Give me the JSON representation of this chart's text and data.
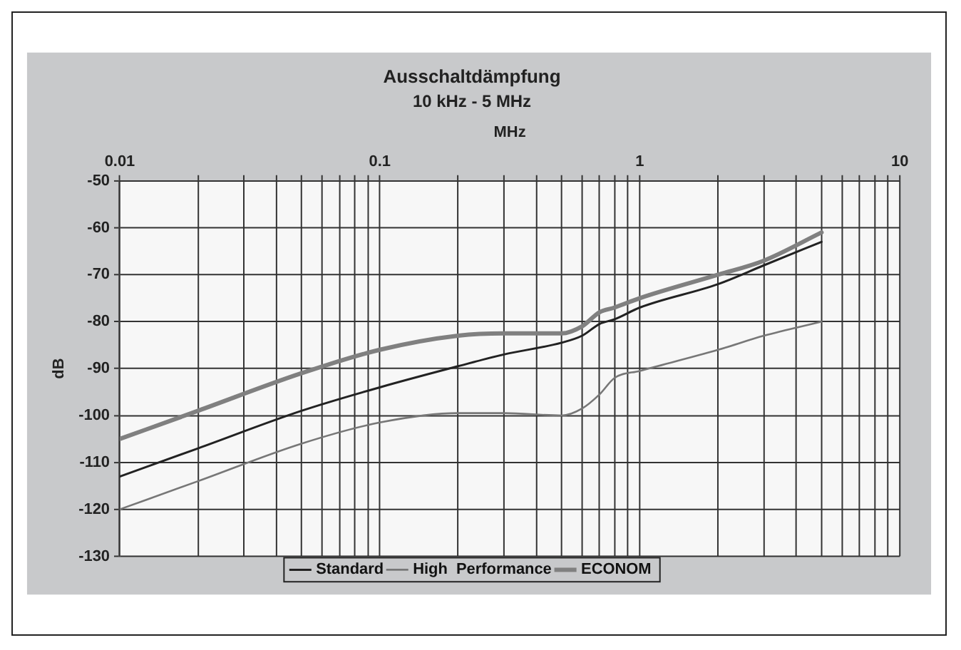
{
  "chart_data": {
    "type": "line",
    "title": "Ausschaltdämpfung",
    "subtitle": "10 kHz - 5 MHz",
    "xlabel": "MHz",
    "ylabel": "dB",
    "log": "x",
    "grid": true,
    "legend": "bottom",
    "marker": "none",
    "line_style": "solid",
    "x": [
      0.01,
      0.02,
      0.05,
      0.1,
      0.2,
      0.3,
      0.5,
      0.6,
      0.7,
      0.8,
      1,
      2,
      3,
      5
    ],
    "xlim": [
      0.01,
      10
    ],
    "xticks": [
      0.01,
      {
        "value": 0.02,
        "label": null
      },
      {
        "value": 0.03,
        "label": null
      },
      {
        "value": 0.04,
        "label": null
      },
      {
        "value": 0.05,
        "label": null
      },
      {
        "value": 0.06,
        "label": null
      },
      {
        "value": 0.07,
        "label": null
      },
      {
        "value": 0.08,
        "label": null
      },
      {
        "value": 0.09,
        "label": null
      },
      0.1,
      {
        "value": 0.2,
        "label": null
      },
      {
        "value": 0.3,
        "label": null
      },
      {
        "value": 0.4,
        "label": null
      },
      {
        "value": 0.5,
        "label": null
      },
      {
        "value": 0.6,
        "label": null
      },
      {
        "value": 0.7,
        "label": null
      },
      {
        "value": 0.8,
        "label": null
      },
      {
        "value": 0.9,
        "label": null
      },
      1,
      {
        "value": 2,
        "label": null
      },
      {
        "value": 3,
        "label": null
      },
      {
        "value": 4,
        "label": null
      },
      {
        "value": 5,
        "label": null
      },
      {
        "value": 6,
        "label": null
      },
      {
        "value": 7,
        "label": null
      },
      {
        "value": 8,
        "label": null
      },
      {
        "value": 9,
        "label": null
      },
      10
    ],
    "ylim": [
      -130,
      -50
    ],
    "yticks": [
      -130,
      -120,
      -110,
      -100,
      -90,
      -80,
      -70,
      -60,
      -50
    ],
    "series": [
      {
        "name": "Standard",
        "color": "#222222",
        "values": [
          -113,
          -107,
          -99,
          -94,
          -89.5,
          -87,
          -84.5,
          -83,
          -80.5,
          -79.5,
          -77,
          -72,
          -68,
          -63
        ]
      },
      {
        "name": "High  Performance",
        "color": "#777777",
        "values": [
          -120,
          -114,
          -106,
          -101.5,
          -99.5,
          -99.5,
          -100,
          -98.5,
          -95.5,
          -92,
          -90.5,
          -86,
          -83,
          -80
        ]
      },
      {
        "name": "ECONOM",
        "color": "#808080",
        "values": [
          -105,
          -99,
          -91,
          -86,
          -83,
          -82.5,
          -82.5,
          -81,
          -78,
          -77,
          -75,
          -70,
          -67,
          -61
        ]
      }
    ]
  }
}
